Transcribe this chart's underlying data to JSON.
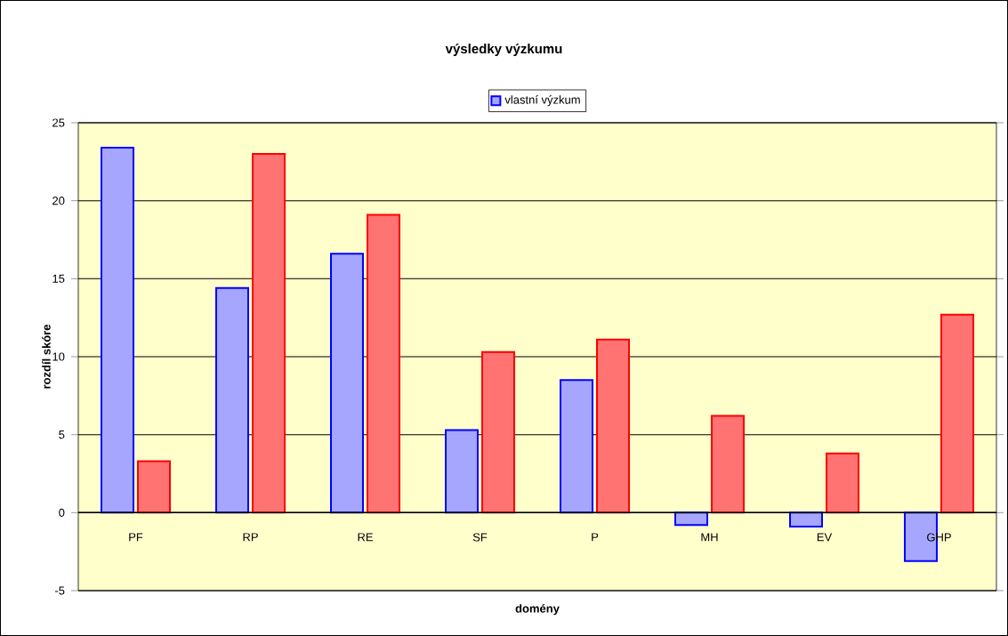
{
  "chart_data": {
    "type": "bar",
    "title": "výsledky výzkumu",
    "xlabel": "domény",
    "ylabel": "rozdíl skóre",
    "categories": [
      "PF",
      "RP",
      "RE",
      "SF",
      "P",
      "MH",
      "EV",
      "GHP"
    ],
    "series": [
      {
        "name": "vlastní výzkum",
        "color": "#0000ff",
        "values": [
          23.4,
          14.4,
          16.6,
          5.3,
          8.5,
          -0.8,
          -0.9,
          -3.1
        ]
      },
      {
        "color": "#ff0000",
        "values": [
          3.3,
          23.0,
          19.1,
          10.3,
          11.1,
          6.2,
          3.8,
          12.7
        ]
      }
    ],
    "ylim": [
      -5,
      25
    ],
    "yticks": [
      -5,
      0,
      5,
      10,
      15,
      20,
      25
    ],
    "grid": "y",
    "legend": "top"
  }
}
